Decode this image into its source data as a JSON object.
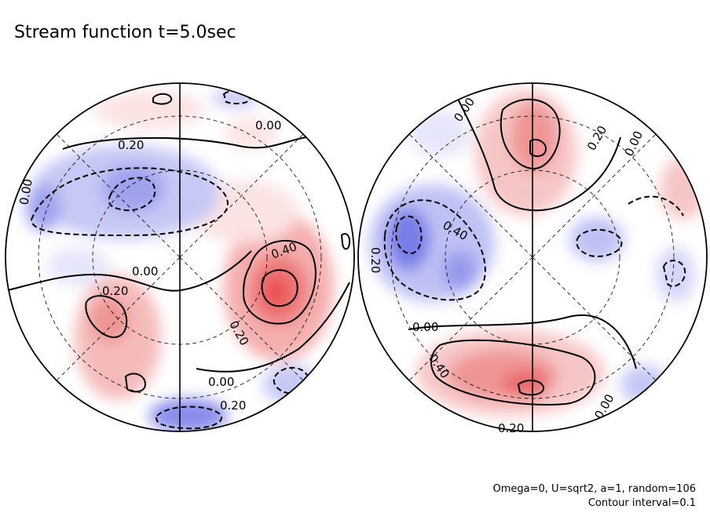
{
  "title": "Stream function t=5.0sec",
  "footer": {
    "line1": "Omega=0, U=sqrt2, a=1, random=106",
    "line2": "Contour interval=0.1"
  },
  "colors": {
    "positive": "#e83a3a",
    "negative": "#3a3ae8",
    "line": "#000000"
  },
  "contour_labels": {
    "left_0": "0.20",
    "left_1": "0.00",
    "left_2": "0.00",
    "left_3": "0.40",
    "left_4": "0.00",
    "left_5": "0.20",
    "left_6": "0.20",
    "left_7": "0.00",
    "left_8": "0.20",
    "right_0": "0.00",
    "right_1": "0.20",
    "right_2": "0.00",
    "right_3": "0.40",
    "right_4": "0.20",
    "right_5": "0.00",
    "right_6": "0.40",
    "right_7": "0.00",
    "right_8": "0.20"
  }
}
